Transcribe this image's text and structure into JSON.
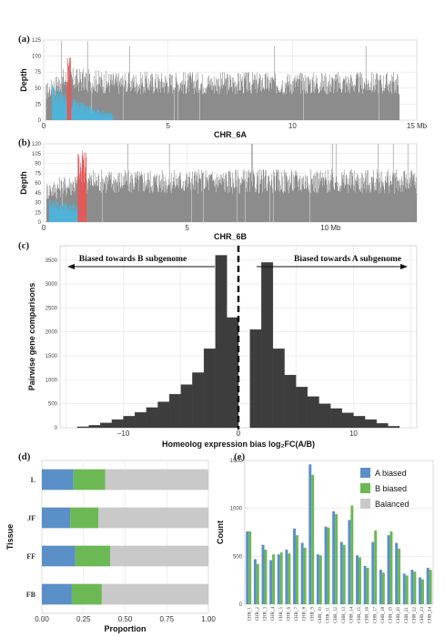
{
  "chart_data": [
    {
      "panel_label": "(a)",
      "type": "area",
      "xlabel": "CHR_6A",
      "ylabel": "Depth",
      "xlim": [
        0,
        15
      ],
      "ylim": [
        0,
        125
      ],
      "x_ticks": [
        0,
        5,
        10,
        15
      ],
      "x_tick_labels": [
        "0",
        "5",
        "10",
        "15 Mb"
      ],
      "y_ticks": [
        0,
        25,
        50,
        75,
        100,
        125
      ],
      "series": [
        {
          "color": "#8c8c8c",
          "x": [
            0.1,
            0.8,
            1.5,
            3.0,
            5.0,
            7.0,
            9.0,
            11.0,
            13.0,
            14.3
          ],
          "values": [
            55,
            80,
            78,
            72,
            73,
            72,
            72,
            72,
            72,
            72
          ]
        },
        {
          "color": "#4fb3d9",
          "x": [
            0.35,
            0.9,
            2.5,
            2.8
          ],
          "values": [
            55,
            35,
            12,
            10
          ]
        },
        {
          "color": "#e05a5a",
          "x": [
            0.95,
            1.1
          ],
          "values": [
            95,
            110
          ]
        }
      ]
    },
    {
      "panel_label": "(b)",
      "type": "area",
      "xlabel": "CHR_6B",
      "ylabel": "Depth",
      "xlim": [
        0,
        13
      ],
      "ylim": [
        0,
        120
      ],
      "x_ticks": [
        0,
        5,
        10
      ],
      "x_tick_labels": [
        "0",
        "5",
        "10 Mb"
      ],
      "y_ticks": [
        0,
        15,
        30,
        45,
        60,
        75,
        90,
        105,
        120
      ],
      "series": [
        {
          "color": "#8c8c8c",
          "x": [
            0.1,
            1.5,
            3.0,
            5.0,
            7.0,
            9.0,
            11.0,
            13.0
          ],
          "values": [
            60,
            78,
            78,
            78,
            78,
            78,
            78,
            78
          ]
        },
        {
          "color": "#4fb3d9",
          "x": [
            0.2,
            1.2
          ],
          "values": [
            35,
            25
          ]
        },
        {
          "color": "#e05a5a",
          "x": [
            1.2,
            1.5
          ],
          "values": [
            95,
            115
          ]
        }
      ]
    },
    {
      "panel_label": "(c)",
      "type": "bar",
      "title_left": "Biased towards B subgenome",
      "title_right": "Biased towards A subgenome",
      "xlabel": "Homeolog expression bias log₂FC(A/B)",
      "ylabel": "Pairwise gene comparisons",
      "xlim": [
        -15.5,
        15.5
      ],
      "ylim": [
        0,
        3800
      ],
      "x_ticks": [
        -10,
        0,
        10
      ],
      "x_tick_labels": [
        "−10",
        "0",
        "10"
      ],
      "y_ticks": [
        0,
        500,
        1000,
        1500,
        2000,
        2500,
        3000,
        3500
      ],
      "bin_width": 1,
      "bins_left_edge": [
        -14,
        -13,
        -12,
        -11,
        -10,
        -9,
        -8,
        -7,
        -6,
        -5,
        -4,
        -3,
        -2,
        -1,
        0,
        1,
        2,
        3,
        4,
        5,
        6,
        7,
        8,
        9,
        10,
        11,
        12,
        13
      ],
      "values": [
        20,
        50,
        100,
        170,
        240,
        320,
        420,
        540,
        700,
        900,
        1150,
        1650,
        3600,
        2300,
        0,
        2050,
        3450,
        1650,
        1100,
        850,
        650,
        500,
        400,
        310,
        240,
        170,
        90,
        30
      ],
      "reference_line_x": 0
    },
    {
      "panel_label": "(d)",
      "type": "bar",
      "orientation": "horizontal-stacked",
      "xlabel": "Proportion",
      "ylabel": "Tissue",
      "xlim": [
        0,
        1
      ],
      "x_ticks": [
        0,
        0.25,
        0.5,
        0.75,
        1.0
      ],
      "x_tick_labels": [
        "0.00",
        "0.25",
        "0.50",
        "0.75",
        "1.00"
      ],
      "categories": [
        "L",
        "JF",
        "FF",
        "FB"
      ],
      "series": [
        {
          "name": "A biased",
          "color": "#5b8fc7",
          "values": [
            0.19,
            0.17,
            0.2,
            0.18
          ]
        },
        {
          "name": "B biased",
          "color": "#6cb854",
          "values": [
            0.19,
            0.17,
            0.21,
            0.18
          ]
        },
        {
          "name": "Balanced",
          "color": "#c9c9c9",
          "values": [
            0.62,
            0.66,
            0.59,
            0.64
          ]
        }
      ]
    },
    {
      "panel_label": "(e)",
      "type": "bar",
      "xlabel": "",
      "ylabel": "Count",
      "ylim": [
        0,
        1500
      ],
      "y_ticks": [
        0,
        500,
        1000,
        1500
      ],
      "categories": [
        "CHR_1",
        "CHR_2",
        "CHR_3",
        "CHR_4",
        "CHR_5",
        "CHR_6",
        "CHR_7",
        "CHR_8",
        "CHR_9",
        "CHR_10",
        "CHR_11",
        "CHR_12",
        "CHR_13",
        "CHR_14",
        "CHR_15",
        "CHR_16",
        "CHR_17",
        "CHR_18",
        "CHR_19",
        "CHR_20",
        "CHR_21",
        "CHR_22",
        "CHR_23",
        "CHR_24"
      ],
      "legend_position": "top-right",
      "series": [
        {
          "name": "A biased",
          "color": "#5b8fc7",
          "values": [
            760,
            470,
            620,
            460,
            520,
            570,
            790,
            640,
            1460,
            520,
            810,
            970,
            650,
            880,
            510,
            400,
            650,
            360,
            720,
            640,
            320,
            360,
            280,
            380
          ]
        },
        {
          "name": "B biased",
          "color": "#6cb854",
          "values": [
            760,
            420,
            570,
            520,
            540,
            530,
            720,
            590,
            1350,
            510,
            800,
            940,
            620,
            1030,
            490,
            380,
            770,
            330,
            760,
            580,
            300,
            340,
            260,
            360
          ]
        },
        {
          "name": "Balanced",
          "color": "#c9c9c9",
          "values": [
            0,
            0,
            0,
            0,
            0,
            0,
            0,
            0,
            0,
            0,
            0,
            0,
            0,
            0,
            0,
            0,
            0,
            0,
            0,
            0,
            0,
            0,
            0,
            0
          ]
        }
      ]
    }
  ]
}
